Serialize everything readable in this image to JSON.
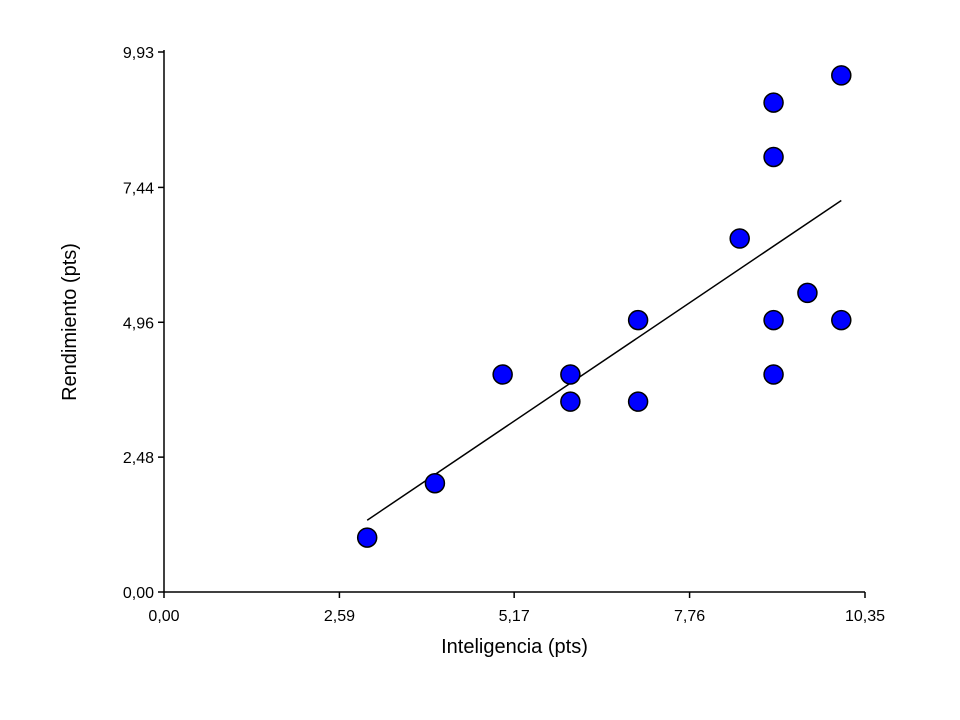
{
  "chart_data": {
    "type": "scatter",
    "title": "",
    "xlabel": "Inteligencia (pts)",
    "ylabel": "Rendimiento (pts)",
    "xlim": [
      0,
      10.35
    ],
    "ylim": [
      0,
      9.93
    ],
    "x_ticks": [
      0.0,
      2.59,
      5.17,
      7.76,
      10.35
    ],
    "x_tick_labels": [
      "0,00",
      "2,59",
      "5,17",
      "7,76",
      "10,35"
    ],
    "y_ticks": [
      0.0,
      2.48,
      4.96,
      7.44,
      9.93
    ],
    "y_tick_labels": [
      "0,00",
      "2,48",
      "4,96",
      "7,44",
      "9,93"
    ],
    "grid": false,
    "marker_color": "#0000FF",
    "series": [
      {
        "points": [
          {
            "x": 3.0,
            "y": 1.0
          },
          {
            "x": 4.0,
            "y": 2.0
          },
          {
            "x": 5.0,
            "y": 4.0
          },
          {
            "x": 6.0,
            "y": 4.0
          },
          {
            "x": 6.0,
            "y": 3.5
          },
          {
            "x": 7.0,
            "y": 5.0
          },
          {
            "x": 7.0,
            "y": 3.5
          },
          {
            "x": 8.5,
            "y": 6.5
          },
          {
            "x": 9.0,
            "y": 9.0
          },
          {
            "x": 9.0,
            "y": 8.0
          },
          {
            "x": 9.0,
            "y": 5.0
          },
          {
            "x": 9.0,
            "y": 4.0
          },
          {
            "x": 9.5,
            "y": 5.5
          },
          {
            "x": 10.0,
            "y": 9.5
          },
          {
            "x": 10.0,
            "y": 5.0
          }
        ]
      }
    ],
    "trend_line": {
      "x": [
        3.0,
        10.0
      ],
      "y": [
        1.32,
        7.2
      ]
    }
  }
}
